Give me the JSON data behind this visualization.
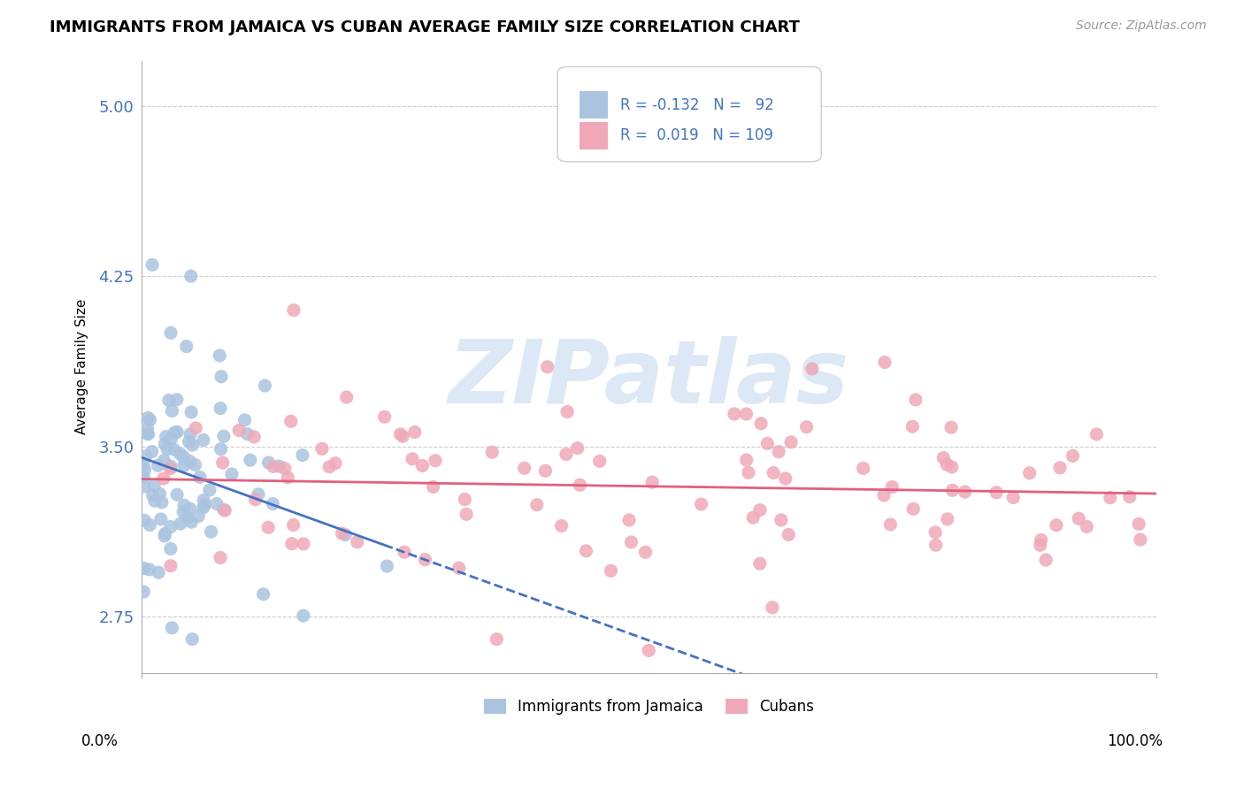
{
  "title": "IMMIGRANTS FROM JAMAICA VS CUBAN AVERAGE FAMILY SIZE CORRELATION CHART",
  "source": "Source: ZipAtlas.com",
  "ylabel": "Average Family Size",
  "y_ticks": [
    2.75,
    3.5,
    4.25,
    5.0
  ],
  "x_range": [
    0.0,
    100.0
  ],
  "y_range": [
    2.5,
    5.2
  ],
  "jamaica_color": "#aac4e0",
  "cuba_color": "#f0a8b8",
  "jamaica_line_color": "#4472c4",
  "cuba_line_color": "#e06080",
  "jamaica_R": -0.132,
  "jamaica_N": 92,
  "cuba_R": 0.019,
  "cuba_N": 109,
  "background_color": "#ffffff",
  "grid_color": "#cccccc",
  "watermark_color": "#dce8f5",
  "legend_text_color": "#4472c4",
  "legend_border_color": "#cccccc",
  "ytick_color": "#4472c4",
  "title_fontsize": 13,
  "source_fontsize": 10,
  "ytick_fontsize": 13
}
